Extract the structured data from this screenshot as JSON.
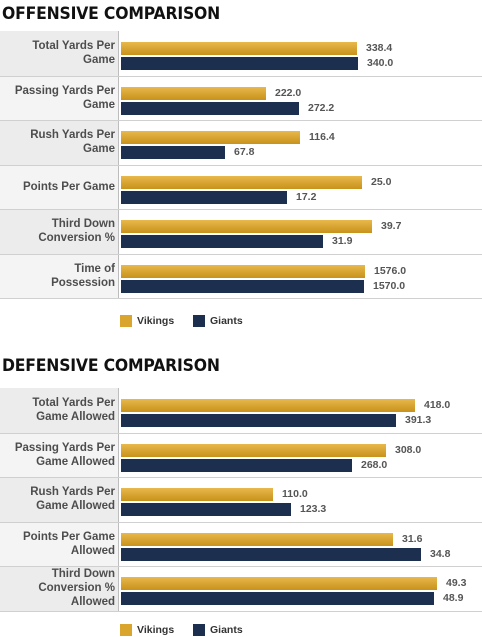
{
  "legend": {
    "series_a": "Vikings",
    "series_b": "Giants"
  },
  "colors": {
    "vikings": "#d9a52c",
    "giants": "#1d2f4f"
  },
  "chart_data": [
    {
      "type": "bar",
      "orientation": "horizontal",
      "title": "OFFENSIVE COMPARISON",
      "categories": [
        "Total Yards Per Game",
        "Passing Yards Per Game",
        "Rush Yards Per Game",
        "Points Per Game",
        "Third Down Conversion %",
        "Time of Possession"
      ],
      "category_lines": [
        [
          "Total Yards Per",
          "Game"
        ],
        [
          "Passing Yards Per",
          "Game"
        ],
        [
          "Rush Yards Per",
          "Game"
        ],
        [
          "Points Per Game"
        ],
        [
          "Third Down",
          "Conversion %"
        ],
        [
          "Time of",
          "Possession"
        ]
      ],
      "value_labels": [
        [
          "338.4",
          "222.0",
          "116.4",
          "25.0",
          "39.7",
          "1576.0"
        ],
        [
          "340.0",
          "272.2",
          "67.8",
          "17.2",
          "31.9",
          "1570.0"
        ]
      ],
      "series": [
        {
          "name": "Vikings",
          "values": [
            338.4,
            222.0,
            116.4,
            25.0,
            39.7,
            1576.0
          ]
        },
        {
          "name": "Giants",
          "values": [
            340.0,
            272.2,
            67.8,
            17.2,
            31.9,
            1570.0
          ]
        }
      ],
      "legend_position": "bottom-left"
    },
    {
      "type": "bar",
      "orientation": "horizontal",
      "title": "DEFENSIVE COMPARISON",
      "categories": [
        "Total Yards Per Game Allowed",
        "Passing Yards Per Game Allowed",
        "Rush Yards Per Game Allowed",
        "Points Per Game Allowed",
        "Third Down Conversion % Allowed"
      ],
      "category_lines": [
        [
          "Total Yards Per",
          "Game Allowed"
        ],
        [
          "Passing Yards Per",
          "Game Allowed"
        ],
        [
          "Rush Yards Per",
          "Game Allowed"
        ],
        [
          "Points Per Game",
          "Allowed"
        ],
        [
          "Third Down",
          "Conversion %",
          "Allowed"
        ]
      ],
      "value_labels": [
        [
          "418.0",
          "308.0",
          "110.0",
          "31.6",
          "49.3"
        ],
        [
          "391.3",
          "268.0",
          "123.3",
          "34.8",
          "48.9"
        ]
      ],
      "series": [
        {
          "name": "Vikings",
          "values": [
            418.0,
            308.0,
            110.0,
            31.6,
            49.3
          ]
        },
        {
          "name": "Giants",
          "values": [
            391.3,
            268.0,
            123.3,
            34.8,
            48.9
          ]
        }
      ],
      "legend_position": "bottom-left"
    }
  ]
}
